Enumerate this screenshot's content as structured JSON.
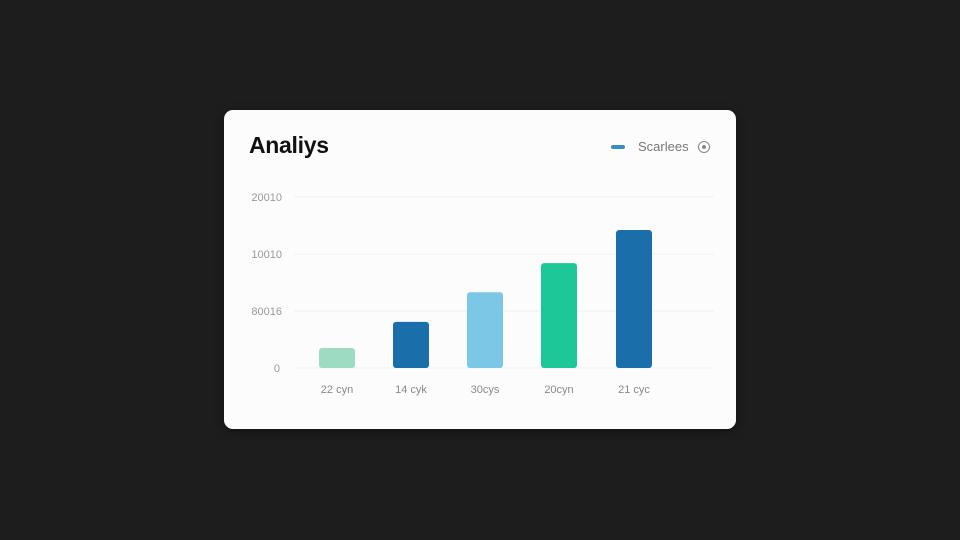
{
  "chart_data": {
    "type": "bar",
    "title": "Analiys",
    "legend": {
      "label": "Scarlees",
      "color": "#3a8cc4",
      "placement": "top-right"
    },
    "categories": [
      "22 cyn",
      "14 cyk",
      "30cys",
      "20cyn",
      "21 cyc"
    ],
    "values": [
      0.35,
      0.81,
      1.33,
      1.84,
      2.42
    ],
    "colors": [
      "#9ddcc3",
      "#1a6fab",
      "#7cc7e6",
      "#1dc797",
      "#1a6fab"
    ],
    "yticks": [
      0,
      1,
      2,
      3
    ],
    "ytick_labels": [
      "0",
      "80016",
      "10010",
      "20010"
    ],
    "ylim": [
      0,
      3
    ],
    "grid": true,
    "xlabel": "",
    "ylabel": ""
  }
}
